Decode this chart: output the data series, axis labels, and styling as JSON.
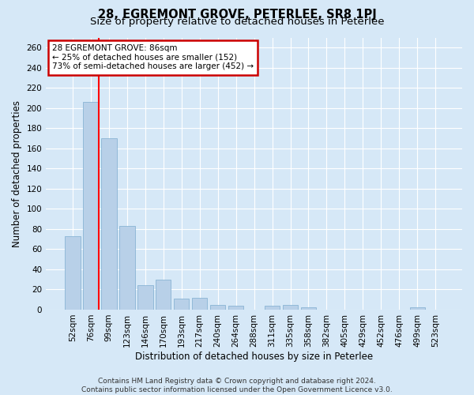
{
  "title_line1": "28, EGREMONT GROVE, PETERLEE, SR8 1PJ",
  "title_line2": "Size of property relative to detached houses in Peterlee",
  "xlabel": "Distribution of detached houses by size in Peterlee",
  "ylabel": "Number of detached properties",
  "categories": [
    "52sqm",
    "76sqm",
    "99sqm",
    "123sqm",
    "146sqm",
    "170sqm",
    "193sqm",
    "217sqm",
    "240sqm",
    "264sqm",
    "288sqm",
    "311sqm",
    "335sqm",
    "358sqm",
    "382sqm",
    "405sqm",
    "429sqm",
    "452sqm",
    "476sqm",
    "499sqm",
    "523sqm"
  ],
  "values": [
    73,
    206,
    170,
    83,
    24,
    30,
    11,
    12,
    5,
    4,
    0,
    4,
    5,
    2,
    0,
    0,
    0,
    0,
    0,
    2,
    0
  ],
  "bar_color": "#b8d0e8",
  "bar_edge_color": "#8ab4d4",
  "red_line_index": 1,
  "ylim_max": 270,
  "yticks": [
    0,
    20,
    40,
    60,
    80,
    100,
    120,
    140,
    160,
    180,
    200,
    220,
    240,
    260
  ],
  "annotation_text": "28 EGREMONT GROVE: 86sqm\n← 25% of detached houses are smaller (152)\n73% of semi-detached houses are larger (452) →",
  "annotation_box_color": "#ffffff",
  "annotation_box_edge": "#cc0000",
  "footer_line1": "Contains HM Land Registry data © Crown copyright and database right 2024.",
  "footer_line2": "Contains public sector information licensed under the Open Government Licence v3.0.",
  "background_color": "#d6e8f7",
  "plot_bg_color": "#d6e8f7",
  "grid_color": "#ffffff",
  "title_fontsize": 10.5,
  "subtitle_fontsize": 9.5,
  "axis_label_fontsize": 8.5,
  "tick_fontsize": 7.5,
  "annotation_fontsize": 7.5,
  "footer_fontsize": 6.5
}
